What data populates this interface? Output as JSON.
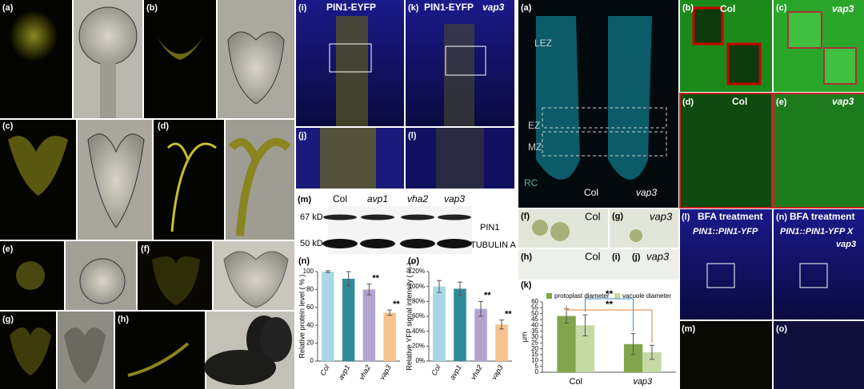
{
  "texts": [
    "(a)",
    "(b)",
    "(c)",
    "(d)",
    "(e)",
    "(f)",
    "(g)",
    "(h)",
    "(i)",
    "PIN1-EYFP",
    "(k)",
    "PIN1-EYFP",
    "vap3",
    "(j)",
    "(l)",
    "(m)",
    "(a)",
    "LEZ",
    "EZ",
    "MZ",
    "RC",
    "Col",
    "vap3",
    "(b)",
    "Col",
    "(c)",
    "vap3",
    "(d)",
    "Col",
    "(e)",
    "vap3",
    "(f)",
    "Col",
    "(g)",
    "vap3",
    "(h)",
    "Col",
    "(i)",
    "(j)",
    "vap3",
    "(l)",
    "BFA treatment",
    "PIN1::PIN1-YFP",
    "(n)",
    "BFA treatment",
    "PIN1::PIN1-YFP X",
    "vap3",
    "(m)",
    "(o)"
  ],
  "blot": {
    "lanes": [
      "Col",
      "avp1",
      "vha2",
      "vap3"
    ],
    "sizes": [
      "67 kD",
      "50 kD"
    ],
    "proteins": [
      "PIN1",
      "TUBULIN A"
    ]
  },
  "chart_data": [
    {
      "type": "bar",
      "label": "(n)",
      "y_label": "Relative protein level ( % )",
      "categories": [
        "Col",
        "avp1",
        "vha2",
        "vap3"
      ],
      "values": [
        100,
        92,
        80,
        54
      ],
      "errors": [
        1,
        8,
        6,
        3
      ],
      "colors": [
        "#a9d6e5",
        "#2e8b9a",
        "#b3a3cf",
        "#f6c28f"
      ],
      "significance": [
        null,
        null,
        "**",
        "**"
      ],
      "ylim": [
        0,
        100
      ],
      "yticks": [
        0,
        20,
        40,
        60,
        80,
        100
      ]
    },
    {
      "type": "bar",
      "label": "(o)",
      "y_label": "Relative YFP signal intensity ( % )",
      "categories": [
        "Col",
        "avp1",
        "vha2",
        "vap3"
      ],
      "values": [
        100,
        97,
        70,
        49
      ],
      "errors": [
        8,
        9,
        10,
        6
      ],
      "colors": [
        "#a9d6e5",
        "#2e8b9a",
        "#b3a3cf",
        "#f6c28f"
      ],
      "significance": [
        null,
        null,
        "**",
        "**"
      ],
      "ylim": [
        0,
        120
      ],
      "yticks": [
        {
          "value": 0,
          "label": "0%"
        },
        {
          "value": 20,
          "label": "20%"
        },
        {
          "value": 40,
          "label": "40%"
        },
        {
          "value": 60,
          "label": "60%"
        },
        {
          "value": 80,
          "label": "80%"
        },
        {
          "value": 100,
          "label": "100%"
        },
        {
          "value": 120,
          "label": "120%"
        }
      ]
    },
    {
      "type": "grouped_bar",
      "label": "(k)",
      "y_label": "μm",
      "categories": [
        "Col",
        "vap3"
      ],
      "series": [
        {
          "name": "protoplast diameter",
          "color": "#7fa64a",
          "values": [
            48,
            24
          ],
          "errors": [
            6,
            9
          ]
        },
        {
          "name": "vacuole diameter",
          "color": "#c5d9a5",
          "values": [
            40,
            17
          ],
          "errors": [
            9,
            6
          ]
        }
      ],
      "annotations": [
        "**",
        "**"
      ],
      "ylim": [
        0,
        60
      ],
      "yticks": [
        0,
        5,
        10,
        15,
        20,
        25,
        30,
        35,
        40,
        45,
        50,
        55,
        60
      ]
    }
  ]
}
